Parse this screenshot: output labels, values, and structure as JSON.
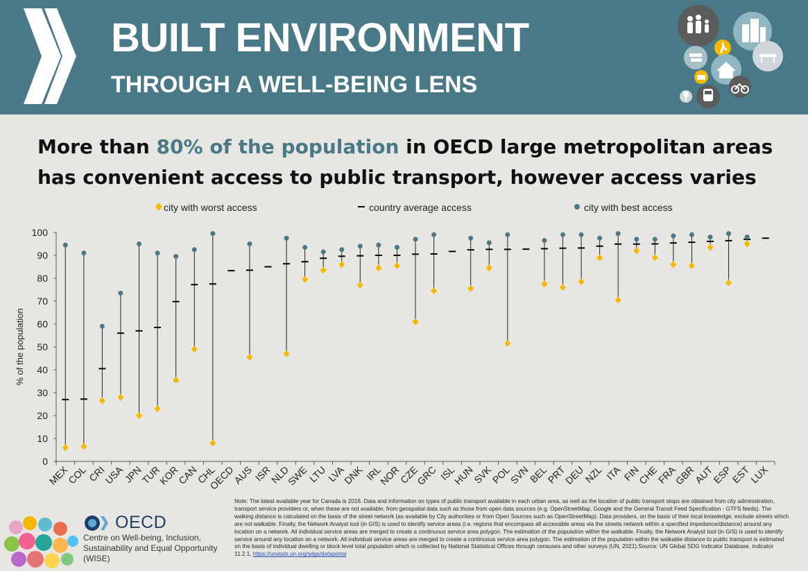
{
  "header": {
    "title": "BUILT ENVIRONMENT",
    "subtitle": "THROUGH A WELL-BEING LENS",
    "color": "#497986"
  },
  "headline": {
    "pre": "More than ",
    "highlight": "80% of the population",
    "post": " in OECD large metropolitan areas has convenient access to public transport, however access varies"
  },
  "chart_data": {
    "type": "scatter",
    "title": "",
    "ylabel": "% of the population",
    "xlabel": "",
    "ylim": [
      0,
      100
    ],
    "yticks": [
      0,
      10,
      20,
      30,
      40,
      50,
      60,
      70,
      80,
      90,
      100
    ],
    "legend": {
      "position": "top",
      "worst": "city with worst access",
      "average": "country average access",
      "best": "city with best access"
    },
    "colors": {
      "worst": "#f5b800",
      "average": "#000000",
      "best": "#497986"
    },
    "categories": [
      "MEX",
      "COL",
      "CRI",
      "USA",
      "JPN",
      "TUR",
      "KOR",
      "CAN",
      "CHL",
      "OECD",
      "AUS",
      "ISR",
      "NLD",
      "SWE",
      "LTU",
      "LVA",
      "DNK",
      "IRL",
      "NOR",
      "CZE",
      "GRC",
      "ISL",
      "HUN",
      "SVK",
      "POL",
      "SVN",
      "BEL",
      "PRT",
      "DEU",
      "NZL",
      "ITA",
      "FIN",
      "CHE",
      "FRA",
      "GBR",
      "AUT",
      "ESP",
      "EST",
      "LUX"
    ],
    "series": [
      {
        "name": "city with worst access",
        "values": [
          6,
          6.5,
          26.5,
          28,
          20,
          23,
          35.5,
          49,
          8,
          null,
          45.5,
          null,
          47,
          79.5,
          83.5,
          86,
          77,
          84.5,
          85.5,
          61,
          74.5,
          null,
          75.5,
          84.5,
          51.5,
          null,
          77.5,
          76,
          78.5,
          89,
          70.5,
          92,
          89,
          86,
          85.5,
          93.5,
          78,
          95,
          null
        ]
      },
      {
        "name": "country average access",
        "values": [
          27,
          27.2,
          40.5,
          56,
          57,
          58.5,
          69.8,
          77.2,
          77.5,
          83.3,
          83.5,
          85,
          86.3,
          87.2,
          88.7,
          89.6,
          89.8,
          90,
          90,
          90.5,
          90.6,
          91.7,
          92.4,
          92.6,
          92.6,
          92.7,
          92.9,
          93.1,
          93.2,
          94,
          94.9,
          94.9,
          95,
          95.4,
          95.7,
          96.1,
          96.4,
          97,
          97.5
        ]
      },
      {
        "name": "city with best access",
        "values": [
          94.5,
          91,
          59,
          73.5,
          95,
          91,
          89.5,
          92.5,
          99.5,
          null,
          95,
          null,
          97.5,
          93.5,
          91.5,
          92.5,
          94,
          94.5,
          93.5,
          97,
          99,
          null,
          97.5,
          95.5,
          99,
          null,
          96.5,
          99,
          99,
          97.5,
          99.5,
          97,
          97,
          98.5,
          99,
          98,
          99.5,
          98,
          null
        ]
      }
    ]
  },
  "note": {
    "text": "Note: The latest available year for Canada is 2016. Data and information on types of public transport available in each urban area, as well as the location of public transport stops are obtained from city administration, transport service providers or, when these are not available, from geospatial data such as those from open data sources (e.g. OpenStreetMap, Google and the General Transit Feed Specification - GTFS feeds). The walking distance is calculated on the basis of the street network (as available by City authorities or from Open Sources such as OpenStreetMap). Data providers, on the basis of their local knowledge, exclude streets which are not walkable. Finally, the Network Analyst tool (in GIS) is used to identify service areas (i.e. regions that encompass all accessible areas via the streets network within a specified impedance/distance) around any location on a network. All individual service areas are merged to create a continuous service area polygon. The estimation of the population within the walkable. Finally, the Network Analyst tool (in GIS) is used to identify service around any location on a network. All individual service areas are merged to create a continuous service area polygon. The estimation of the population within the walkable distance to public transport is estimated on the basis of individual dwelling or block level total population which is collected by National Statistical Offices through censuses and other surveys (UN, 2021).Source: UN Global SDG Indicator Database, indicator 11.2.1, ",
    "link": "https://unstats.un.org/sdgs/dataportal"
  },
  "footer": {
    "org": "OECD",
    "centre": "Centre on Well-being, Inclusion, Sustainability and Equal Opportunity (WISE)"
  }
}
